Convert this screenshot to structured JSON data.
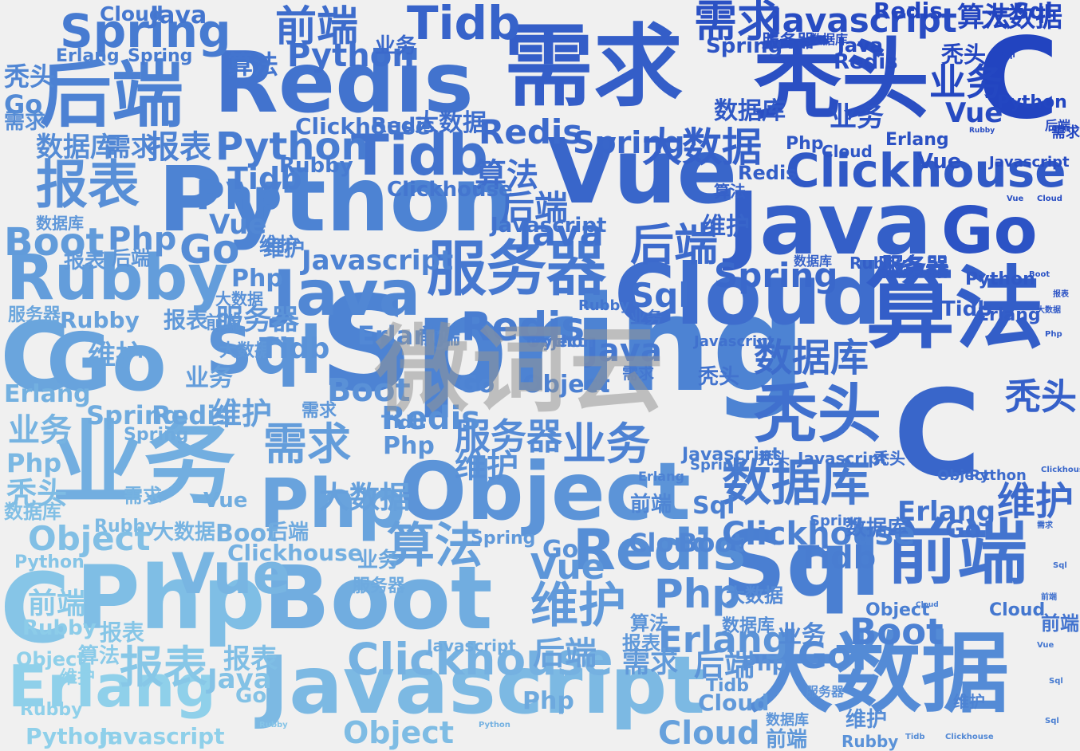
{
  "watermark": "微词云",
  "palette": {
    "dark": "#2244c0",
    "mid": "#4a7fd2",
    "light": "#8fd0ea"
  },
  "words": [
    "Spring",
    "Redis",
    "需求",
    "Python",
    "Vue",
    "Java",
    "秃头",
    "Cloud",
    "算法",
    "Object",
    "Boot",
    "Php",
    "Sql",
    "业务",
    "前端",
    "大数据",
    "Javascript",
    "后端",
    "Rubby",
    "Go",
    "服务器",
    "数据库",
    "Clickhouse",
    "Erlang",
    "报表",
    "Tidb",
    "维护",
    "C"
  ]
}
